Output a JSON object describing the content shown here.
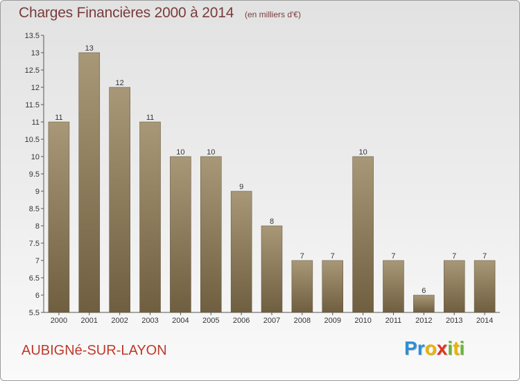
{
  "title": "Charges Financières 2000 à 2014",
  "subtitle": "(en milliers d'€)",
  "commune": "AUBIGNé-SUR-LAYON",
  "logo": {
    "letters": [
      {
        "ch": "P",
        "color": "#2a8fd6"
      },
      {
        "ch": "r",
        "color": "#2a8fd6"
      },
      {
        "ch": "o",
        "color": "#e8b400"
      },
      {
        "ch": "x",
        "color": "#e0331e"
      },
      {
        "ch": "i",
        "color": "#6db33f"
      },
      {
        "ch": "t",
        "color": "#e8b400"
      },
      {
        "ch": "i",
        "color": "#6db33f"
      }
    ]
  },
  "colors": {
    "bar_top": "#a89878",
    "bar_bottom": "#6f5f40",
    "title": "#7a3b3b",
    "commune": "#c0392b"
  },
  "chart_data": {
    "type": "bar",
    "categories": [
      "2000",
      "2001",
      "2002",
      "2003",
      "2004",
      "2005",
      "2006",
      "2007",
      "2008",
      "2009",
      "2010",
      "2011",
      "2012",
      "2013",
      "2014"
    ],
    "values": [
      11,
      13,
      12,
      11,
      10,
      10,
      9,
      8,
      7,
      7,
      10,
      7,
      6,
      7,
      7
    ],
    "value_labels": [
      "11",
      "13",
      "12",
      "11",
      "10",
      "10",
      "9",
      "8",
      "7",
      "7",
      "10",
      "7",
      "6",
      "7",
      "7"
    ],
    "ylim": [
      5.5,
      13.5
    ],
    "yticks": [
      5.5,
      6,
      6.5,
      7,
      7.5,
      8,
      8.5,
      9,
      9.5,
      10,
      10.5,
      11,
      11.5,
      12,
      12.5,
      13,
      13.5
    ],
    "ytick_labels": [
      "5.5",
      "6",
      "6.5",
      "7",
      "7.5",
      "8",
      "8.5",
      "9",
      "9.5",
      "10",
      "10.5",
      "11",
      "11.5",
      "12",
      "12.5",
      "13",
      "13.5"
    ],
    "grid": false,
    "legend": "none"
  }
}
